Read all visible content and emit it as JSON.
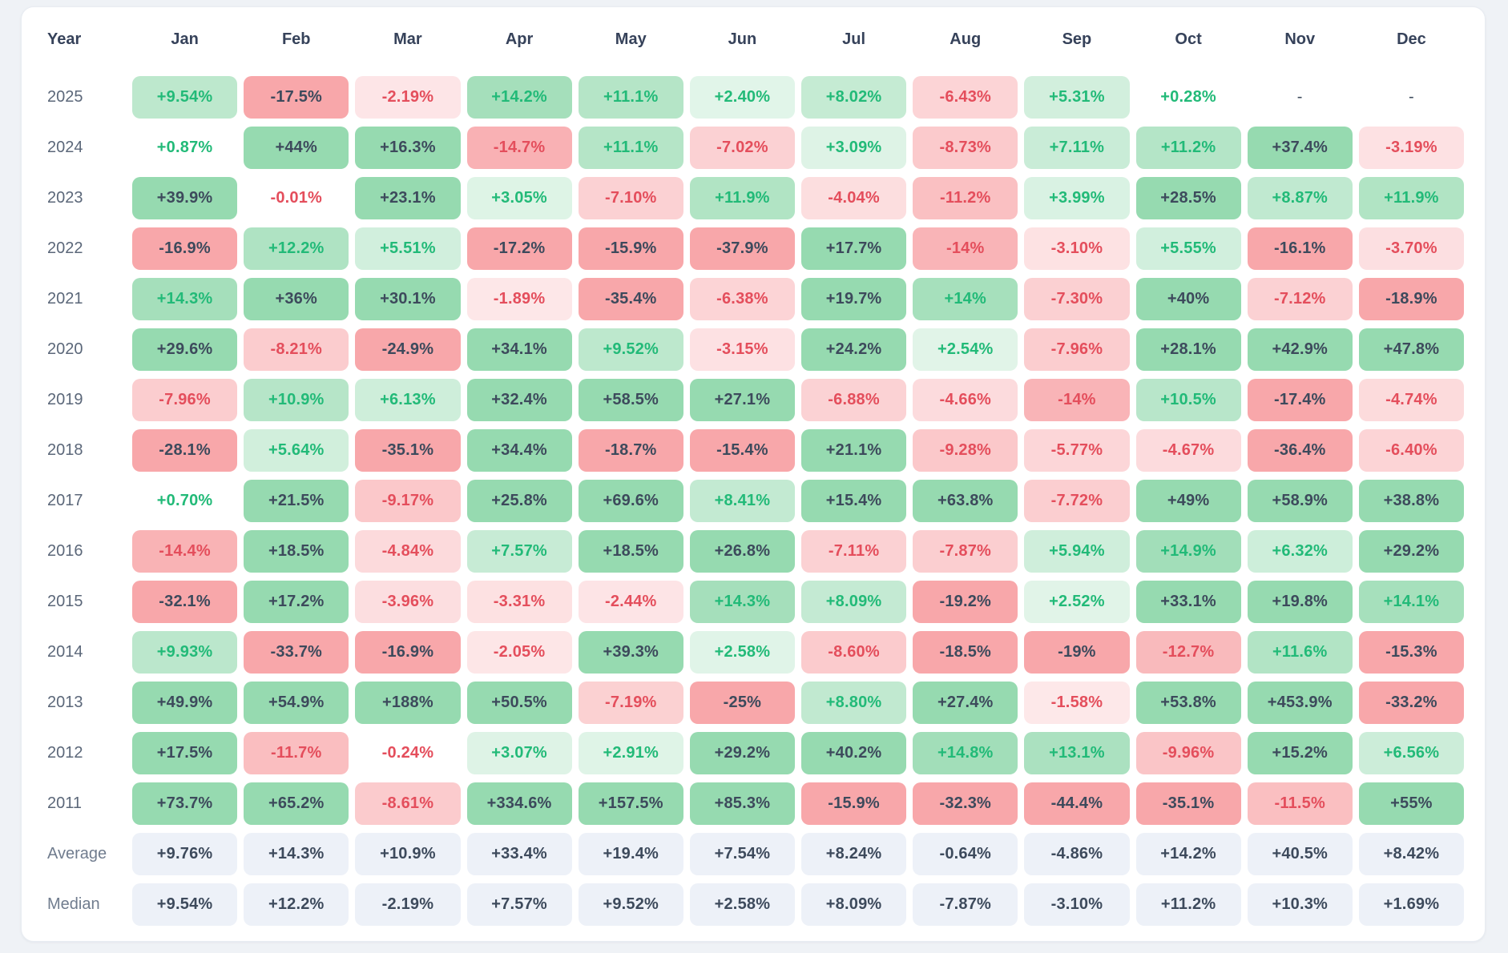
{
  "page": {
    "background": "#eff2f6"
  },
  "card": {
    "background": "#ffffff",
    "border": "#e8ecf2"
  },
  "colors": {
    "header_text": "#36425a",
    "year_text": "#5b6779",
    "summary_label_text": "#707c8e",
    "dark_value_text": "#3d4a5c",
    "positive_text": "#22ba78",
    "negative_text": "#e44e5c",
    "positive_bg_strong": "#96dab0",
    "negative_bg_strong": "#f8a7aa",
    "positive_bg_faint": "#f3fbf6",
    "negative_bg_faint": "#fef3f4",
    "summary_cell_bg": "#edf1f8",
    "strong_text_threshold_pct": 15,
    "no_bg_threshold_pct": 1
  },
  "chart_data": {
    "type": "heatmap",
    "columns": [
      "Year",
      "Jan",
      "Feb",
      "Mar",
      "Apr",
      "May",
      "Jun",
      "Jul",
      "Aug",
      "Sep",
      "Oct",
      "Nov",
      "Dec"
    ],
    "rows": [
      {
        "label": "2025",
        "cells": [
          "+9.54%",
          "-17.5%",
          "-2.19%",
          "+14.2%",
          "+11.1%",
          "+2.40%",
          "+8.02%",
          "-6.43%",
          "+5.31%",
          "+0.28%",
          "-",
          "-"
        ]
      },
      {
        "label": "2024",
        "cells": [
          "+0.87%",
          "+44%",
          "+16.3%",
          "-14.7%",
          "+11.1%",
          "-7.02%",
          "+3.09%",
          "-8.73%",
          "+7.11%",
          "+11.2%",
          "+37.4%",
          "-3.19%"
        ]
      },
      {
        "label": "2023",
        "cells": [
          "+39.9%",
          "-0.01%",
          "+23.1%",
          "+3.05%",
          "-7.10%",
          "+11.9%",
          "-4.04%",
          "-11.2%",
          "+3.99%",
          "+28.5%",
          "+8.87%",
          "+11.9%"
        ]
      },
      {
        "label": "2022",
        "cells": [
          "-16.9%",
          "+12.2%",
          "+5.51%",
          "-17.2%",
          "-15.9%",
          "-37.9%",
          "+17.7%",
          "-14%",
          "-3.10%",
          "+5.55%",
          "-16.1%",
          "-3.70%"
        ]
      },
      {
        "label": "2021",
        "cells": [
          "+14.3%",
          "+36%",
          "+30.1%",
          "-1.89%",
          "-35.4%",
          "-6.38%",
          "+19.7%",
          "+14%",
          "-7.30%",
          "+40%",
          "-7.12%",
          "-18.9%"
        ]
      },
      {
        "label": "2020",
        "cells": [
          "+29.6%",
          "-8.21%",
          "-24.9%",
          "+34.1%",
          "+9.52%",
          "-3.15%",
          "+24.2%",
          "+2.54%",
          "-7.96%",
          "+28.1%",
          "+42.9%",
          "+47.8%"
        ]
      },
      {
        "label": "2019",
        "cells": [
          "-7.96%",
          "+10.9%",
          "+6.13%",
          "+32.4%",
          "+58.5%",
          "+27.1%",
          "-6.88%",
          "-4.66%",
          "-14%",
          "+10.5%",
          "-17.4%",
          "-4.74%"
        ]
      },
      {
        "label": "2018",
        "cells": [
          "-28.1%",
          "+5.64%",
          "-35.1%",
          "+34.4%",
          "-18.7%",
          "-15.4%",
          "+21.1%",
          "-9.28%",
          "-5.77%",
          "-4.67%",
          "-36.4%",
          "-6.40%"
        ]
      },
      {
        "label": "2017",
        "cells": [
          "+0.70%",
          "+21.5%",
          "-9.17%",
          "+25.8%",
          "+69.6%",
          "+8.41%",
          "+15.4%",
          "+63.8%",
          "-7.72%",
          "+49%",
          "+58.9%",
          "+38.8%"
        ]
      },
      {
        "label": "2016",
        "cells": [
          "-14.4%",
          "+18.5%",
          "-4.84%",
          "+7.57%",
          "+18.5%",
          "+26.8%",
          "-7.11%",
          "-7.87%",
          "+5.94%",
          "+14.9%",
          "+6.32%",
          "+29.2%"
        ]
      },
      {
        "label": "2015",
        "cells": [
          "-32.1%",
          "+17.2%",
          "-3.96%",
          "-3.31%",
          "-2.44%",
          "+14.3%",
          "+8.09%",
          "-19.2%",
          "+2.52%",
          "+33.1%",
          "+19.8%",
          "+14.1%"
        ]
      },
      {
        "label": "2014",
        "cells": [
          "+9.93%",
          "-33.7%",
          "-16.9%",
          "-2.05%",
          "+39.3%",
          "+2.58%",
          "-8.60%",
          "-18.5%",
          "-19%",
          "-12.7%",
          "+11.6%",
          "-15.3%"
        ]
      },
      {
        "label": "2013",
        "cells": [
          "+49.9%",
          "+54.9%",
          "+188%",
          "+50.5%",
          "-7.19%",
          "-25%",
          "+8.80%",
          "+27.4%",
          "-1.58%",
          "+53.8%",
          "+453.9%",
          "-33.2%"
        ]
      },
      {
        "label": "2012",
        "cells": [
          "+17.5%",
          "-11.7%",
          "-0.24%",
          "+3.07%",
          "+2.91%",
          "+29.2%",
          "+40.2%",
          "+14.8%",
          "+13.1%",
          "-9.96%",
          "+15.2%",
          "+6.56%"
        ]
      },
      {
        "label": "2011",
        "cells": [
          "+73.7%",
          "+65.2%",
          "-8.61%",
          "+334.6%",
          "+157.5%",
          "+85.3%",
          "-15.9%",
          "-32.3%",
          "-44.4%",
          "-35.1%",
          "-11.5%",
          "+55%"
        ]
      }
    ],
    "summary_rows": [
      {
        "label": "Average",
        "cells": [
          "+9.76%",
          "+14.3%",
          "+10.9%",
          "+33.4%",
          "+19.4%",
          "+7.54%",
          "+8.24%",
          "-0.64%",
          "-4.86%",
          "+14.2%",
          "+40.5%",
          "+8.42%"
        ]
      },
      {
        "label": "Median",
        "cells": [
          "+9.54%",
          "+12.2%",
          "-2.19%",
          "+7.57%",
          "+9.52%",
          "+2.58%",
          "+8.09%",
          "-7.87%",
          "-3.10%",
          "+11.2%",
          "+10.3%",
          "+1.69%"
        ]
      }
    ]
  }
}
